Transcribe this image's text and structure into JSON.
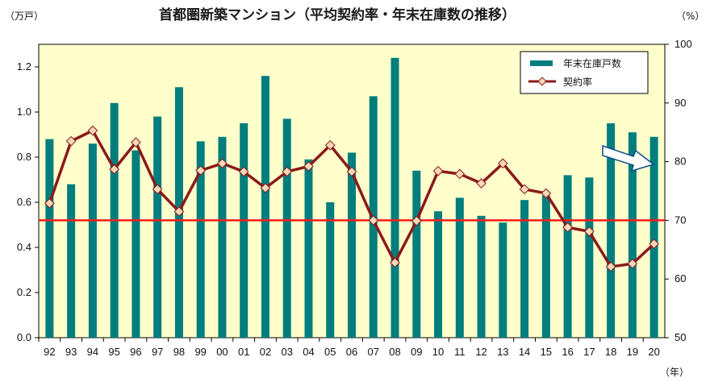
{
  "chart_data": {
    "type": "bar",
    "title": "首都圏新築マンション（平均契約率・年末在庫数の推移）",
    "left_unit": "（万戸）",
    "right_unit": "（%）",
    "x_unit": "（年）",
    "categories": [
      "92",
      "93",
      "94",
      "95",
      "96",
      "97",
      "98",
      "99",
      "00",
      "01",
      "02",
      "03",
      "04",
      "05",
      "06",
      "07",
      "08",
      "09",
      "10",
      "11",
      "12",
      "13",
      "14",
      "15",
      "16",
      "17",
      "18",
      "19",
      "20"
    ],
    "y_left": {
      "min": 0,
      "max": 1.3,
      "ticks": [
        "0.0",
        "0.2",
        "0.4",
        "0.6",
        "0.8",
        "1.0",
        "1.2"
      ]
    },
    "y_right": {
      "min": 50,
      "max": 100,
      "ticks": [
        "50",
        "60",
        "70",
        "80",
        "90",
        "100"
      ]
    },
    "series": [
      {
        "name": "年末在庫戸数",
        "type": "bar",
        "axis": "left",
        "color": "#007d7d",
        "values": [
          0.88,
          0.68,
          0.86,
          1.04,
          0.83,
          0.98,
          1.11,
          0.87,
          0.89,
          0.95,
          1.16,
          0.97,
          0.79,
          0.6,
          0.82,
          1.07,
          1.24,
          0.74,
          0.56,
          0.62,
          0.54,
          0.51,
          0.61,
          0.63,
          0.72,
          0.71,
          0.95,
          0.91,
          0.89
        ]
      },
      {
        "name": "契約率",
        "type": "line",
        "axis": "right",
        "color": "#8b1a1a",
        "marker_color": "#f7d7b8",
        "values": [
          72.9,
          83.5,
          85.3,
          78.7,
          83.3,
          75.3,
          71.5,
          78.5,
          79.7,
          78.3,
          75.5,
          78.3,
          79.2,
          82.8,
          78.3,
          70.0,
          62.8,
          69.9,
          78.4,
          77.9,
          76.3,
          79.7,
          75.3,
          74.6,
          68.8,
          68.1,
          62.1,
          62.6,
          66.0
        ]
      }
    ],
    "reference_line": {
      "axis": "right",
      "value": 70,
      "color": "#ff1a1a"
    },
    "arrow": {
      "color": "#ffffff",
      "stroke": "#0d4a8a"
    },
    "plot_background": "#ffffcc",
    "grid": false,
    "legend_position": "top-right"
  }
}
